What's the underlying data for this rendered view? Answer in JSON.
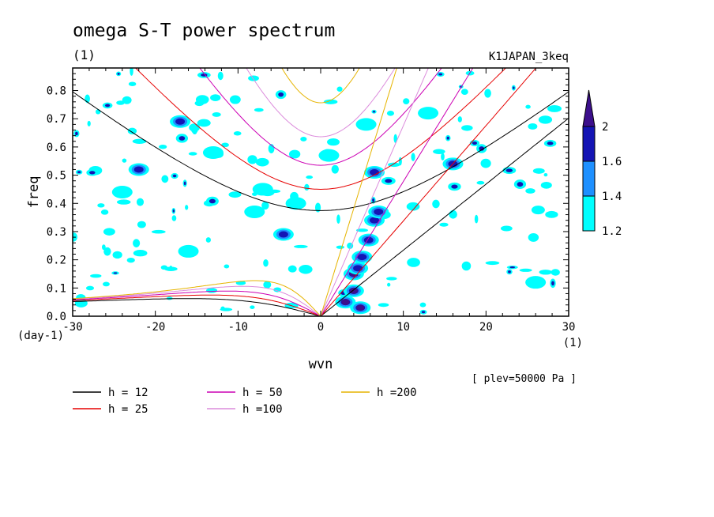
{
  "chart_data": {
    "type": "heatmap",
    "title": "omega S-T power spectrum",
    "subtitle_left": "(1)",
    "subtitle_right": "K1JAPAN_3keq",
    "xlabel": "wvn",
    "ylabel": "freq",
    "x_unit": "(1)",
    "y_unit": "(day-1)",
    "xlim": [
      -30,
      30
    ],
    "ylim": [
      0,
      0.88
    ],
    "x_ticks": [
      -30,
      -20,
      -10,
      0,
      10,
      20,
      30
    ],
    "x_tick_labels": [
      "-30",
      "-20",
      "-10",
      "0",
      "10",
      "20",
      "30"
    ],
    "y_ticks": [
      0.0,
      0.1,
      0.2,
      0.3,
      0.4,
      0.5,
      0.6,
      0.7,
      0.8
    ],
    "y_tick_labels": [
      "0.0",
      "0.1",
      "0.2",
      "0.3",
      "0.4",
      "0.5",
      "0.6",
      "0.7",
      "0.8"
    ],
    "annotation": "[ plev=50000 Pa ]",
    "colorbar": {
      "levels": [
        "1.2",
        "1.4",
        "1.6",
        "2"
      ],
      "colors": [
        "#00ffff",
        "#1e90ff",
        "#1414b4",
        "#3c0f8c"
      ]
    },
    "dispersion_curves": [
      {
        "label": "h = 12",
        "h": 12,
        "color": "#000000"
      },
      {
        "label": "h = 25",
        "h": 25,
        "color": "#e60000"
      },
      {
        "label": "h = 50",
        "h": 50,
        "color": "#cc00b4"
      },
      {
        "label": "h =100",
        "h": 100,
        "color": "#dc8cdc"
      },
      {
        "label": "h =200",
        "h": 200,
        "color": "#e6b400"
      }
    ],
    "power_blobs": [
      {
        "k": 3.0,
        "f": 0.05,
        "level": 3
      },
      {
        "k": 4.0,
        "f": 0.09,
        "level": 3
      },
      {
        "k": 4.8,
        "f": 0.03,
        "level": 3
      },
      {
        "k": 4.0,
        "f": 0.15,
        "level": 3
      },
      {
        "k": 4.5,
        "f": 0.17,
        "level": 2
      },
      {
        "k": 5.0,
        "f": 0.21,
        "level": 2
      },
      {
        "k": 5.8,
        "f": 0.27,
        "level": 2
      },
      {
        "k": 6.5,
        "f": 0.34,
        "level": 2
      },
      {
        "k": 7.0,
        "f": 0.37,
        "level": 2
      },
      {
        "k": 6.5,
        "f": 0.51,
        "level": 2
      },
      {
        "k": -4.5,
        "f": 0.29,
        "level": 2
      },
      {
        "k": -22,
        "f": 0.52,
        "level": 2
      },
      {
        "k": -17,
        "f": 0.69,
        "level": 2
      },
      {
        "k": 5.5,
        "f": 0.68,
        "level": 1
      },
      {
        "k": -13,
        "f": 0.58,
        "level": 1
      },
      {
        "k": -7,
        "f": 0.45,
        "level": 1
      },
      {
        "k": -3,
        "f": 0.4,
        "level": 1
      },
      {
        "k": 1,
        "f": 0.57,
        "level": 1
      },
      {
        "k": 16,
        "f": 0.54,
        "level": 2
      },
      {
        "k": -16,
        "f": 0.23,
        "level": 1
      },
      {
        "k": -8,
        "f": 0.37,
        "level": 1
      },
      {
        "k": 13,
        "f": 0.72,
        "level": 1
      },
      {
        "k": -24,
        "f": 0.44,
        "level": 1
      },
      {
        "k": 26,
        "f": 0.12,
        "level": 1
      }
    ]
  },
  "legend_entries": [
    {
      "label": "h = 12",
      "color": "#000000"
    },
    {
      "label": "h = 50",
      "color": "#cc00b4"
    },
    {
      "label": "h =200",
      "color": "#e6b400"
    },
    {
      "label": "h = 25",
      "color": "#e60000"
    },
    {
      "label": "h =100",
      "color": "#dc8cdc"
    }
  ]
}
